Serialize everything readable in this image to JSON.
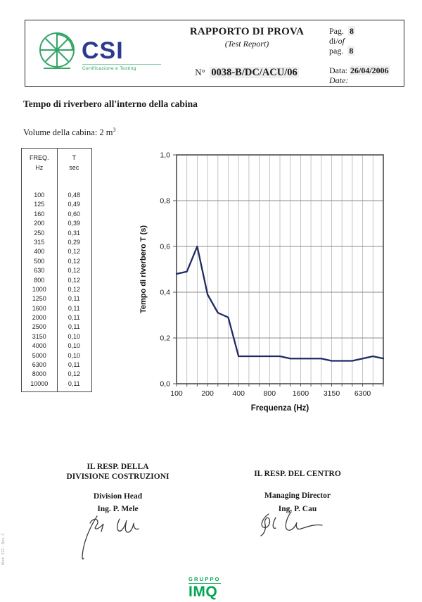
{
  "header": {
    "logo_name": "CSI",
    "logo_tagline": "Certificazione e Testing",
    "title": "RAPPORTO DI PROVA",
    "subtitle": "(Test Report)",
    "report_no_label": "N°",
    "report_no": "0038-B/DC/ACU/06",
    "pag_label": "Pag.",
    "pag_value": "8",
    "diof_di": "di/",
    "diof_of": "of",
    "pag2_label": "pag.",
    "pag2_value": "8",
    "data_label": "Data:",
    "data_value": "26/04/2006",
    "date_label": "Date:"
  },
  "section": {
    "title": "Tempo di riverbero all'interno della cabina",
    "volume_text": "Volume della cabina: 2 m",
    "volume_sup": "3"
  },
  "table": {
    "col1_header_line1": "FREQ.",
    "col1_header_line2": "Hz",
    "col2_header_line1": "T",
    "col2_header_line2": "sec",
    "rows": [
      [
        "100",
        "0,48"
      ],
      [
        "125",
        "0,49"
      ],
      [
        "160",
        "0,60"
      ],
      [
        "200",
        "0,39"
      ],
      [
        "250",
        "0,31"
      ],
      [
        "315",
        "0,29"
      ],
      [
        "400",
        "0,12"
      ],
      [
        "500",
        "0,12"
      ],
      [
        "630",
        "0,12"
      ],
      [
        "800",
        "0,12"
      ],
      [
        "1000",
        "0,12"
      ],
      [
        "1250",
        "0,11"
      ],
      [
        "1600",
        "0,11"
      ],
      [
        "2000",
        "0,11"
      ],
      [
        "2500",
        "0,11"
      ],
      [
        "3150",
        "0,10"
      ],
      [
        "4000",
        "0,10"
      ],
      [
        "5000",
        "0,10"
      ],
      [
        "6300",
        "0,11"
      ],
      [
        "8000",
        "0,12"
      ],
      [
        "10000",
        "0,11"
      ]
    ]
  },
  "chart_data": {
    "type": "line",
    "title": "",
    "categories": [
      100,
      125,
      160,
      200,
      250,
      315,
      400,
      500,
      630,
      800,
      1000,
      1250,
      1600,
      2000,
      2500,
      3150,
      4000,
      5000,
      6300,
      8000,
      10000
    ],
    "values": [
      0.48,
      0.49,
      0.6,
      0.39,
      0.31,
      0.29,
      0.12,
      0.12,
      0.12,
      0.12,
      0.12,
      0.11,
      0.11,
      0.11,
      0.11,
      0.1,
      0.1,
      0.1,
      0.11,
      0.12,
      0.11
    ],
    "xlabel": "Frequenza (Hz)",
    "ylabel": "Tempo di riverbero T (s)",
    "ylim": [
      0.0,
      1.0
    ],
    "x_scale": "log-third-octave",
    "grid": true,
    "legend_position": "none",
    "ytick_labels": [
      "0,0",
      "0,2",
      "0,4",
      "0,6",
      "0,8",
      "1,0"
    ],
    "xtick_indices": [
      0,
      3,
      6,
      9,
      12,
      15,
      18
    ],
    "xtick_labels": [
      "100",
      "200",
      "400",
      "800",
      "1600",
      "3150",
      "6300"
    ],
    "line_color": "#1e2a63"
  },
  "signatures": {
    "left_line1": "IL RESP. DELLA",
    "left_line2": "DIVISIONE COSTRUZIONI",
    "left_role": "Division Head",
    "left_name": "Ing. P. Mele",
    "right_line1": "IL RESP. DEL CENTRO",
    "right_role": "Managing Director",
    "right_name": "Ing. P. Cau"
  },
  "footer": {
    "gruppo": "GRUPPO",
    "imq": "IMQ",
    "green": "#00a651"
  },
  "margin_note": "Mod. 372 - Rev. 4",
  "colors": {
    "logo_navy": "#2b3990",
    "logo_green": "#34a567",
    "line_navy": "#1e2a63"
  }
}
